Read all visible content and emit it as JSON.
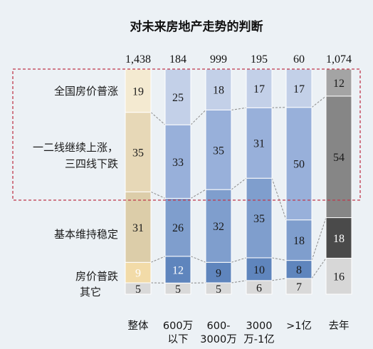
{
  "chart_data": {
    "type": "bar",
    "stacked": true,
    "normalized": true,
    "title": "对未来房地产走势的判断",
    "categories": [
      "整体",
      "600万\n以下",
      "600-\n3000万",
      "3000\n万-1亿",
      ">1亿",
      "去年"
    ],
    "totals": [
      "1,438",
      "184",
      "999",
      "195",
      "60",
      "1,074"
    ],
    "series": [
      {
        "name": "其它",
        "values": [
          5,
          5,
          5,
          6,
          7,
          16
        ]
      },
      {
        "name": "房价普跌",
        "values": [
          9,
          12,
          9,
          10,
          8,
          18
        ]
      },
      {
        "name": "基本维持稳定",
        "values": [
          31,
          26,
          32,
          35,
          18,
          null
        ]
      },
      {
        "name": "一二线继续上涨，\n三四线下跌",
        "values": [
          35,
          33,
          35,
          31,
          50,
          54
        ]
      },
      {
        "name": "全国房价普涨",
        "values": [
          19,
          25,
          18,
          17,
          17,
          12
        ]
      }
    ],
    "colors": {
      "0": [
        "#d9d9d9",
        "#f2dba8",
        "#dccda9",
        "#e7d8b7",
        "#f4ead1"
      ],
      "1": [
        "#d9d9d9",
        "#5f85bd",
        "#7f9ecd",
        "#98b0da",
        "#c3d0e8"
      ],
      "2": [
        "#d9d9d9",
        "#5f85bd",
        "#7f9ecd",
        "#98b0da",
        "#c3d0e8"
      ],
      "3": [
        "#d9d9d9",
        "#5f85bd",
        "#7f9ecd",
        "#98b0da",
        "#c3d0e8"
      ],
      "4": [
        "#d9d9d9",
        "#5f85bd",
        "#7f9ecd",
        "#98b0da",
        "#c3d0e8"
      ],
      "5": [
        "#d7d7d7",
        "#4a4a4a",
        null,
        "#868686",
        "#a4a4a4"
      ]
    },
    "highlight_box_color": "#c0374a",
    "connector_color": "#8a8a8a"
  }
}
